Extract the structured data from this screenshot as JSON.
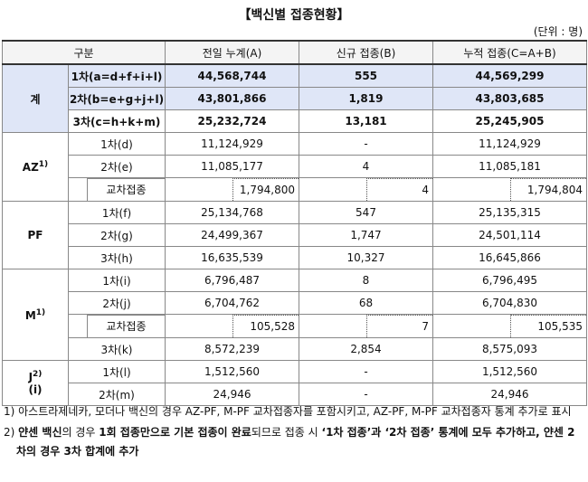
{
  "title": "【백신별 접종현황】",
  "unit": "(단위 : 명)",
  "table": {
    "header": [
      "구분",
      "전일 누계(A)",
      "신규 접종(B)",
      "누적 접종(C=A+B)"
    ],
    "groups": [
      {
        "name": "계",
        "rows": [
          {
            "label": "1차(a=d+f+i+l)",
            "values": [
              "44,568,744",
              "555",
              "44,569,299"
            ],
            "shade": true
          },
          {
            "label": "2차(b=e+g+j+l)",
            "values": [
              "43,801,866",
              "1,819",
              "43,803,685"
            ],
            "shade": true
          },
          {
            "label": "3차(c=h+k+m)",
            "values": [
              "25,232,724",
              "13,181",
              "25,245,905"
            ]
          }
        ],
        "bold": true
      },
      {
        "name": "AZ",
        "sup": "1)",
        "rows": [
          {
            "label": "1차(d)",
            "values": [
              "11,124,929",
              "-",
              "11,124,929"
            ]
          },
          {
            "label": "2차(e)",
            "values": [
              "11,085,177",
              "4",
              "11,085,181"
            ]
          },
          {
            "label": "교차접종",
            "values": [
              "1,794,800",
              "4",
              "1,794,804"
            ],
            "cross": true
          }
        ]
      },
      {
        "name": "PF",
        "rows": [
          {
            "label": "1차(f)",
            "values": [
              "25,134,768",
              "547",
              "25,135,315"
            ]
          },
          {
            "label": "2차(g)",
            "values": [
              "24,499,367",
              "1,747",
              "24,501,114"
            ]
          },
          {
            "label": "3차(h)",
            "values": [
              "16,635,539",
              "10,327",
              "16,645,866"
            ]
          }
        ]
      },
      {
        "name": "M",
        "sup": "1)",
        "rows": [
          {
            "label": "1차(i)",
            "values": [
              "6,796,487",
              "8",
              "6,796,495"
            ]
          },
          {
            "label": "2차(j)",
            "values": [
              "6,704,762",
              "68",
              "6,704,830"
            ]
          },
          {
            "label": "교차접종",
            "values": [
              "105,528",
              "7",
              "105,535"
            ],
            "cross": true
          },
          {
            "label": "3차(k)",
            "values": [
              "8,572,239",
              "2,854",
              "8,575,093"
            ]
          }
        ]
      },
      {
        "name": "J",
        "sup": "2)",
        "sub": "(i)",
        "rows": [
          {
            "label": "1차(l)",
            "values": [
              "1,512,560",
              "-",
              "1,512,560"
            ]
          },
          {
            "label": "2차(m)",
            "values": [
              "24,946",
              "-",
              "24,946"
            ]
          }
        ]
      }
    ]
  },
  "footnotes": [
    [
      {
        "text": "1) 아스트라제네카, 모더나 백신의 경우 AZ-PF, M-PF 교차접종자를 포함시키고, AZ-PF, M-PF 교차접종자 통계 추가로 표시"
      }
    ],
    [
      {
        "text": "2) "
      },
      {
        "text": "얀센 백신",
        "bold": true
      },
      {
        "text": "의 경우 "
      },
      {
        "text": "1회 접종만으로 기본 접종이 완료",
        "bold": true
      },
      {
        "text": "되므로 접종 시 "
      },
      {
        "text": "‘1차 접종’과 ‘2차 접종’ 통계에 모두 추가하고, 얀센 2차의 경우 3차 합계에 추가",
        "bold": true
      }
    ]
  ]
}
